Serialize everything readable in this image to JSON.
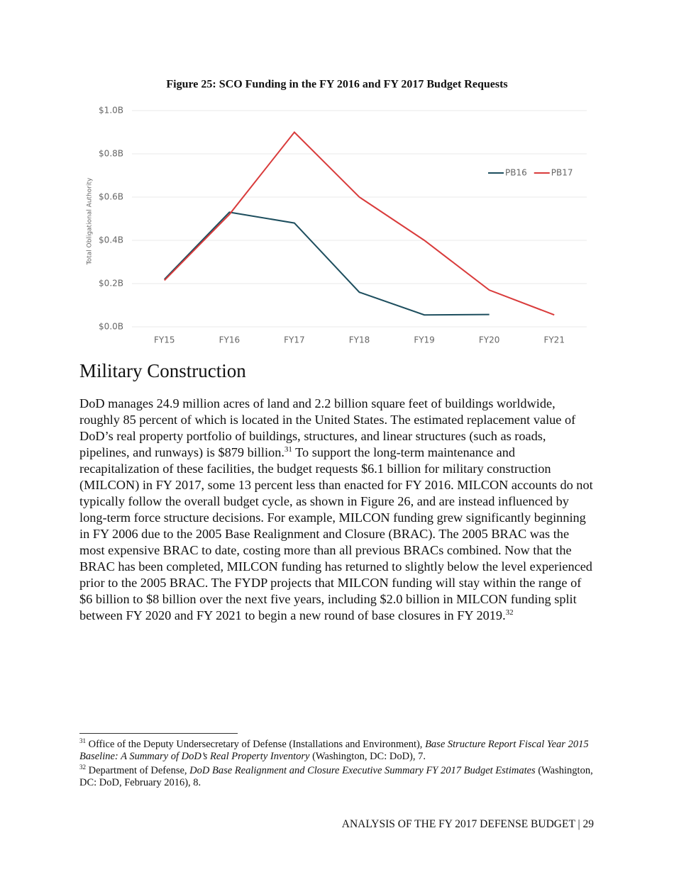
{
  "chart_data": {
    "type": "line",
    "title": "Figure 25: SCO Funding in the FY 2016 and FY 2017 Budget Requests",
    "y_label": "Total Obligational Authority",
    "categories": [
      "FY15",
      "FY16",
      "FY17",
      "FY18",
      "FY19",
      "FY20",
      "FY21"
    ],
    "series": [
      {
        "name": "PB16",
        "color": "#1d4e5e",
        "values": [
          0.22,
          0.53,
          0.48,
          0.16,
          0.055,
          0.057,
          null
        ]
      },
      {
        "name": "PB17",
        "color": "#d93b3b",
        "values": [
          0.215,
          0.52,
          0.9,
          0.6,
          0.4,
          0.17,
          0.055
        ]
      }
    ],
    "ylim": [
      0,
      1
    ],
    "yticks": [
      {
        "value": 0,
        "label": "$0.0B"
      },
      {
        "value": 0.2,
        "label": "$0.2B"
      },
      {
        "value": 0.4,
        "label": "$0.4B"
      },
      {
        "value": 0.6,
        "label": "$0.6B"
      },
      {
        "value": 0.8,
        "label": "$0.8B"
      },
      {
        "value": 1,
        "label": "$1.0B"
      }
    ],
    "grid": true,
    "legend": "upper right"
  },
  "heading": "Military Construction",
  "paragraph": {
    "text_1": "DoD manages 24.9 million acres of land and 2.2 billion square feet of buildings worldwide, roughly 85 percent of which is located in the United States. The estimated replacement value of DoD’s real property portfolio of buildings, structures, and linear structures (such as roads, pipelines, and runways) is $879 billion.",
    "note_ref_1": "31",
    "text_2": " To support the long-term maintenance and recapitalization of these facilities, the budget requests $6.1 billion for military construction (MILCON) in FY 2017, some 13 percent less than enacted for FY 2016. MILCON accounts do not typically follow the overall budget cycle, as shown in Figure 26, and are instead influenced by long-term force structure decisions. For example, MILCON funding grew significantly beginning in FY 2006 due to the 2005 Base Realignment and Closure (BRAC). The 2005 BRAC was the most expensive BRAC to date, costing more than all previous BRACs combined. Now that the BRAC has been completed, MILCON funding has returned to slightly below the level experienced prior to the 2005 BRAC. The FYDP projects that MILCON funding will stay within the range of $6 billion to $8 billion over the next five years, including $2.0 billion in MILCON funding split between FY 2020 and FY 2021 to begin a new round of base closures in FY 2019.",
    "note_ref_2": "32"
  },
  "footnotes": [
    {
      "number": "31",
      "text": " Office of the Deputy Undersecretary of Defense (Installations and Environment), ",
      "title": "Base Structure Report Fiscal Year 2015 Baseline: A Summary of DoD’s Real Property Inventory",
      "rest": " (Washington, DC: DoD), 7."
    },
    {
      "number": "32",
      "text": " Department of Defense, ",
      "title": "DoD Base Realignment and Closure Executive Summary FY 2017 Budget Estimates",
      "rest": " (Washington, DC: DoD, February 2016), 8."
    }
  ],
  "footer": "ANALYSIS OF THE FY 2017 DEFENSE BUDGET | 29"
}
